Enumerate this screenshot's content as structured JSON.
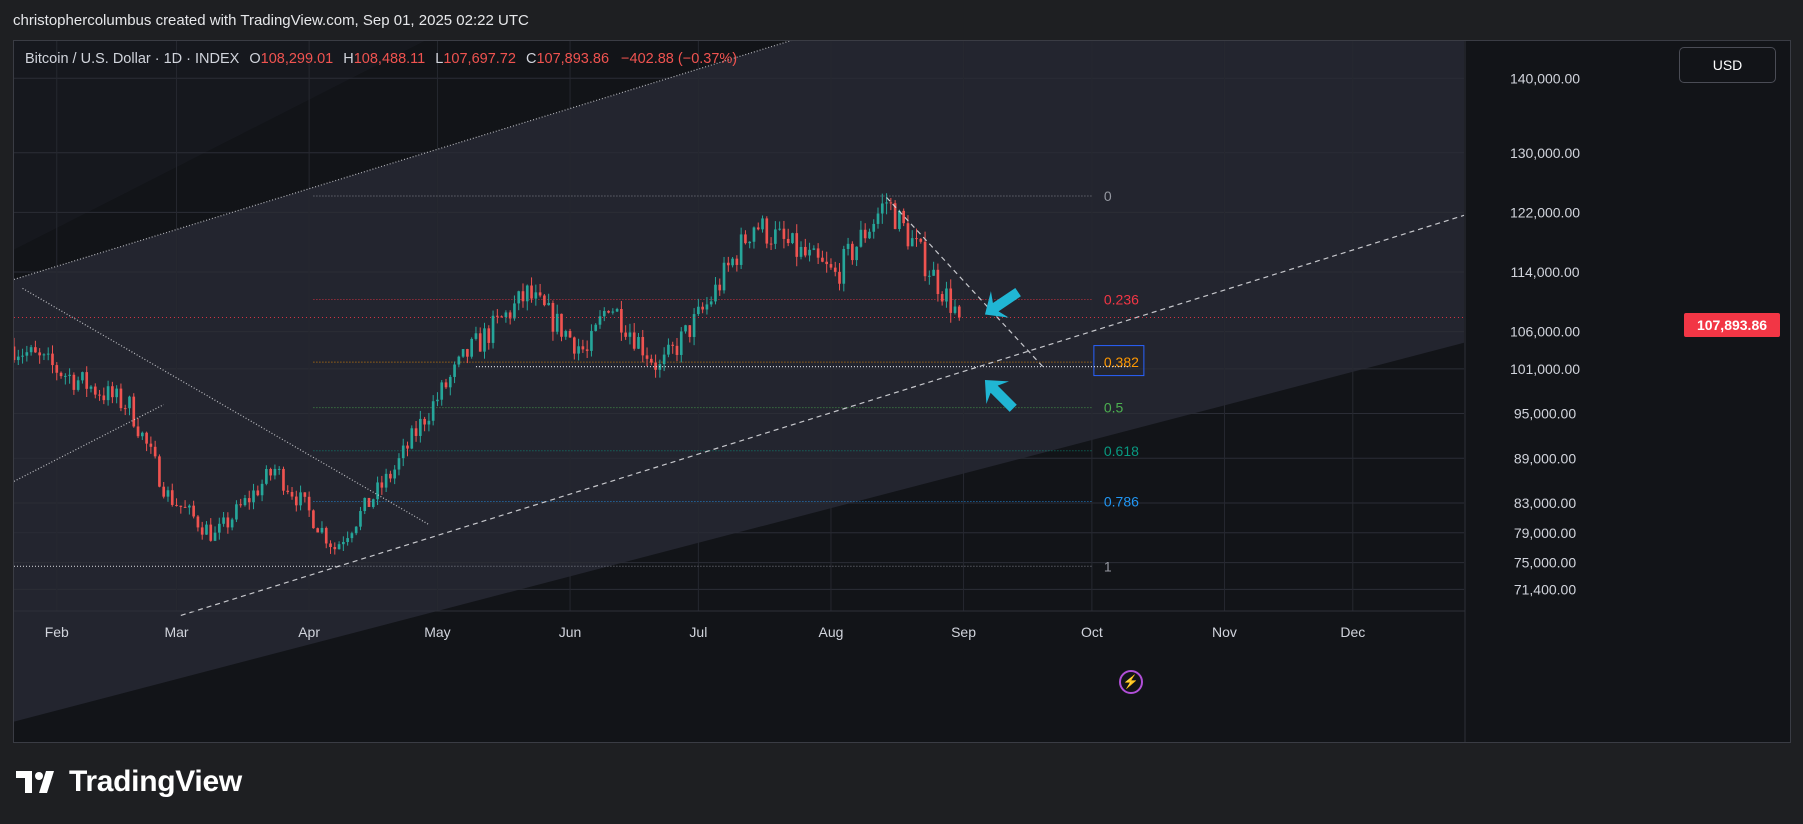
{
  "header": {
    "attribution": "christophercolumbus created with TradingView.com, Sep 01, 2025 02:22 UTC"
  },
  "legend": {
    "symbol": "Bitcoin / U.S. Dollar · 1D · INDEX",
    "o_label": "O",
    "open": "108,299.01",
    "h_label": "H",
    "high": "108,488.11",
    "l_label": "L",
    "low": "107,697.72",
    "c_label": "C",
    "close": "107,893.86",
    "change": "−402.88 (−0.37%)"
  },
  "currency_button": "USD",
  "last_price_label": "107,893.86",
  "brand": {
    "name": "TradingView"
  },
  "colors": {
    "up": "#26a69a",
    "down": "#ef5350",
    "price_line": "#f23645",
    "arrow": "#20b6d4",
    "channel": "#23252f",
    "background": "#121418"
  },
  "icons": {
    "alert": "lightning-icon",
    "logo": "tradingview-logo-icon",
    "annotation_arrows": "arrow-icon"
  },
  "chart_data": {
    "type": "candlestick",
    "title": "Bitcoin / U.S. Dollar · 1D · INDEX",
    "ylim": [
      68500,
      145000
    ],
    "y_ticks": [
      {
        "value": 140000,
        "label": "140,000.00"
      },
      {
        "value": 130000,
        "label": "130,000.00"
      },
      {
        "value": 122000,
        "label": "122,000.00"
      },
      {
        "value": 114000,
        "label": "114,000.00"
      },
      {
        "value": 106000,
        "label": "106,000.00"
      },
      {
        "value": 101000,
        "label": "101,000.00"
      },
      {
        "value": 95000,
        "label": "95,000.00"
      },
      {
        "value": 89000,
        "label": "89,000.00"
      },
      {
        "value": 83000,
        "label": "83,000.00"
      },
      {
        "value": 79000,
        "label": "79,000.00"
      },
      {
        "value": 75000,
        "label": "75,000.00"
      },
      {
        "value": 71400,
        "label": "71,400.00"
      }
    ],
    "x_ticks": [
      "Feb",
      "Mar",
      "Apr",
      "May",
      "Jun",
      "Jul",
      "Aug",
      "Sep",
      "Oct",
      "Nov",
      "Dec"
    ],
    "x_range": [
      "2025-01-22",
      "2025-12-27"
    ],
    "last_price": 107893.86,
    "fib_levels": [
      {
        "label": "0",
        "value": 124200,
        "color": "#9598a1"
      },
      {
        "label": "0.236",
        "value": 110300,
        "color": "#f23645"
      },
      {
        "label": "0.382",
        "value": 101900,
        "color": "#ff9800"
      },
      {
        "label": "0.5",
        "value": 95800,
        "color": "#4caf50"
      },
      {
        "label": "0.618",
        "value": 90000,
        "color": "#089981"
      },
      {
        "label": "0.786",
        "value": 83200,
        "color": "#2196f3"
      },
      {
        "label": "1",
        "value": 74500,
        "color": "#9598a1"
      }
    ],
    "anchors": [
      {
        "date": "2025-01-22",
        "value": 104000
      },
      {
        "date": "2025-02-04",
        "value": 100000
      },
      {
        "date": "2025-02-18",
        "value": 96000
      },
      {
        "date": "2025-02-27",
        "value": 84000
      },
      {
        "date": "2025-03-10",
        "value": 78500
      },
      {
        "date": "2025-03-24",
        "value": 87500
      },
      {
        "date": "2025-03-31",
        "value": 82500
      },
      {
        "date": "2025-04-07",
        "value": 77000
      },
      {
        "date": "2025-04-21",
        "value": 87500
      },
      {
        "date": "2025-04-28",
        "value": 94500
      },
      {
        "date": "2025-05-08",
        "value": 103000
      },
      {
        "date": "2025-05-22",
        "value": 111000
      },
      {
        "date": "2025-06-05",
        "value": 103000
      },
      {
        "date": "2025-06-10",
        "value": 110000
      },
      {
        "date": "2025-06-22",
        "value": 101000
      },
      {
        "date": "2025-07-03",
        "value": 109500
      },
      {
        "date": "2025-07-10",
        "value": 116500
      },
      {
        "date": "2025-07-14",
        "value": 120500
      },
      {
        "date": "2025-08-02",
        "value": 113500
      },
      {
        "date": "2025-08-14",
        "value": 123500
      },
      {
        "date": "2025-08-31",
        "value": 108000
      }
    ]
  }
}
